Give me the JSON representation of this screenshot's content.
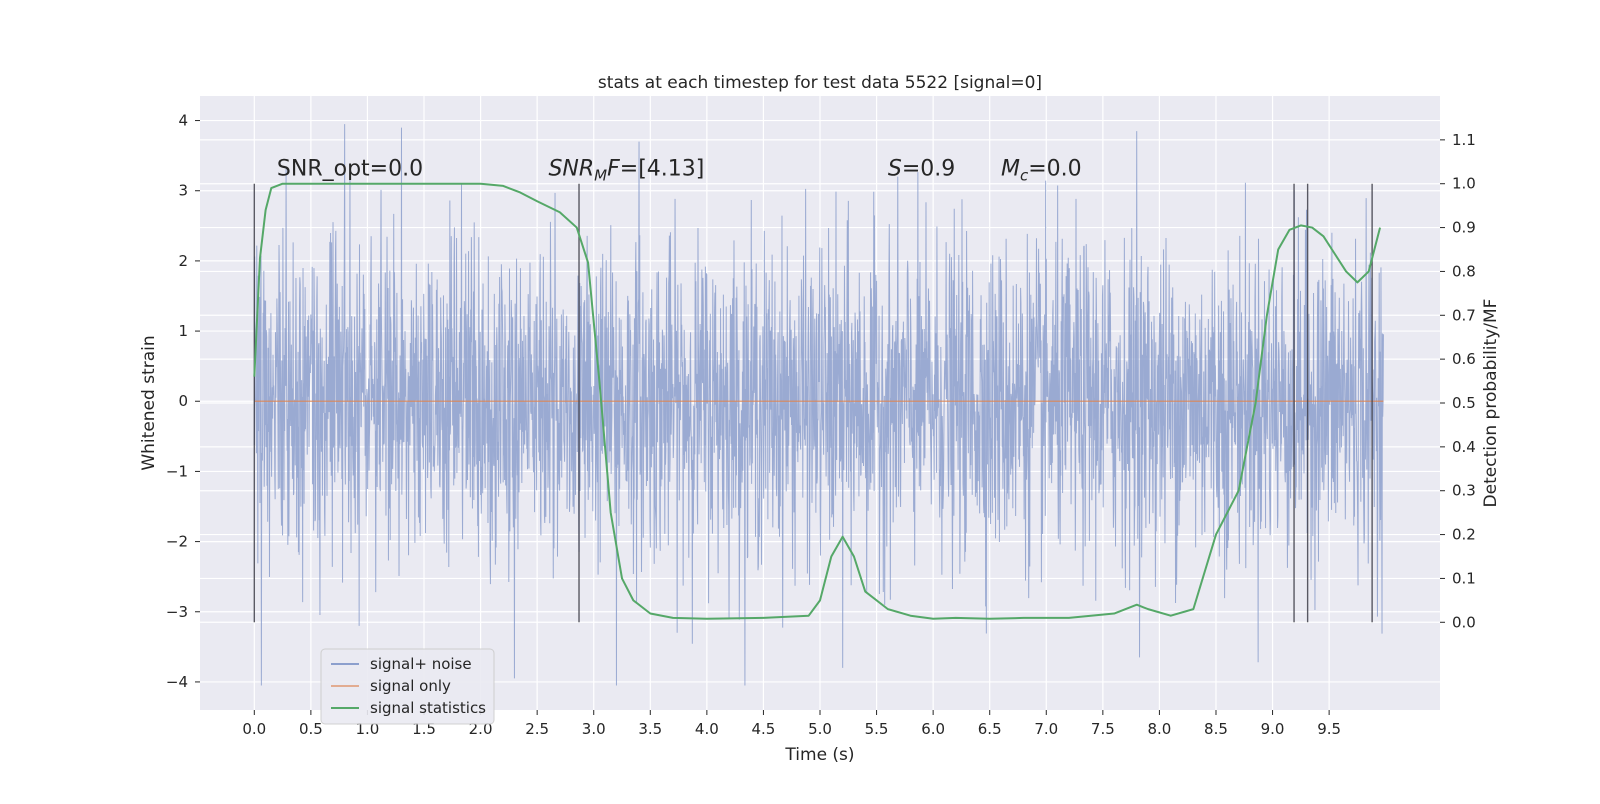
{
  "chart_data": {
    "type": "line",
    "title": "stats at each timestep for test data 5522 [signal=0]",
    "xlabel": "Time (s)",
    "ylabel_left": "Whitened strain",
    "ylabel_right": "Detection probability/MF",
    "xlim": [
      -0.48,
      10.48
    ],
    "ylim_left": [
      -4.4,
      4.35
    ],
    "ylim_right": [
      -0.2,
      1.2
    ],
    "x_ticks": [
      0.0,
      0.5,
      1.0,
      1.5,
      2.0,
      2.5,
      3.0,
      3.5,
      4.0,
      4.5,
      5.0,
      5.5,
      6.0,
      6.5,
      7.0,
      7.5,
      8.0,
      8.5,
      9.0,
      9.5
    ],
    "x_tick_labels": [
      "0.0",
      "0.5",
      "1.0",
      "1.5",
      "2.0",
      "2.5",
      "3.0",
      "3.5",
      "4.0",
      "4.5",
      "5.0",
      "5.5",
      "6.0",
      "6.5",
      "7.0",
      "7.5",
      "8.0",
      "8.5",
      "9.0",
      "9.5"
    ],
    "y_left_ticks": [
      -4,
      -3,
      -2,
      -1,
      0,
      1,
      2,
      3,
      4
    ],
    "y_left_tick_labels": [
      "−4",
      "−3",
      "−2",
      "−1",
      "0",
      "1",
      "2",
      "3",
      "4"
    ],
    "y_right_ticks": [
      0.0,
      0.1,
      0.2,
      0.3,
      0.4,
      0.5,
      0.6,
      0.7,
      0.8,
      0.9,
      1.0,
      1.1
    ],
    "y_right_tick_labels": [
      "0.0",
      "0.1",
      "0.2",
      "0.3",
      "0.4",
      "0.5",
      "0.6",
      "0.7",
      "0.8",
      "0.9",
      "1.0",
      "1.1"
    ],
    "grid": true,
    "legend_placement": "lower-left",
    "annotations": [
      {
        "text": "SNR_opt=0.0",
        "x": 0.2,
        "y": 3.1
      },
      {
        "text": "SNR_MF=[4.13]",
        "x": 2.6,
        "y": 3.1
      },
      {
        "text": "S=0.9",
        "x": 5.6,
        "y": 3.1
      },
      {
        "text": "M_c=0.0",
        "x": 6.6,
        "y": 3.1
      }
    ],
    "vertical_markers": [
      0.0,
      2.87,
      9.19,
      9.31,
      9.88
    ],
    "series": [
      {
        "name": "signal+ noise",
        "axis": "left",
        "color": "#8c9fcd",
        "t_range": [
          0.0,
          9.98
        ],
        "typical_amplitude": 1.1,
        "max": 3.95,
        "min": -4.05,
        "notable_peaks": [
          {
            "x": 0.8,
            "y": 3.95
          },
          {
            "x": 1.3,
            "y": 3.9
          },
          {
            "x": 3.4,
            "y": 3.7
          },
          {
            "x": 7.8,
            "y": 3.85
          },
          {
            "x": 3.2,
            "y": -4.05
          },
          {
            "x": 2.3,
            "y": -3.95
          },
          {
            "x": 5.2,
            "y": -3.8
          }
        ]
      },
      {
        "name": "signal only",
        "axis": "left",
        "color": "#dd8452",
        "x": [
          0.0,
          9.98
        ],
        "y": [
          0.0,
          0.0
        ]
      },
      {
        "name": "signal statistics",
        "axis": "right",
        "color": "#55a868",
        "x": [
          0.0,
          0.05,
          0.1,
          0.15,
          0.25,
          0.5,
          1.0,
          1.5,
          2.0,
          2.2,
          2.35,
          2.5,
          2.7,
          2.85,
          2.95,
          3.05,
          3.15,
          3.25,
          3.35,
          3.5,
          3.7,
          4.0,
          4.5,
          4.9,
          5.0,
          5.1,
          5.2,
          5.3,
          5.4,
          5.6,
          5.8,
          6.0,
          6.2,
          6.5,
          6.8,
          7.2,
          7.6,
          7.8,
          7.9,
          8.1,
          8.3,
          8.5,
          8.7,
          8.85,
          8.95,
          9.05,
          9.15,
          9.25,
          9.35,
          9.45,
          9.55,
          9.65,
          9.75,
          9.85,
          9.95
        ],
        "y": [
          0.56,
          0.83,
          0.94,
          0.99,
          1.0,
          1.0,
          1.0,
          1.0,
          1.0,
          0.995,
          0.98,
          0.96,
          0.935,
          0.9,
          0.82,
          0.55,
          0.25,
          0.1,
          0.05,
          0.02,
          0.01,
          0.008,
          0.01,
          0.015,
          0.05,
          0.15,
          0.195,
          0.15,
          0.07,
          0.03,
          0.015,
          0.008,
          0.01,
          0.008,
          0.01,
          0.01,
          0.02,
          0.04,
          0.03,
          0.015,
          0.03,
          0.2,
          0.3,
          0.5,
          0.7,
          0.85,
          0.895,
          0.905,
          0.9,
          0.88,
          0.84,
          0.8,
          0.775,
          0.8,
          0.9
        ]
      }
    ]
  }
}
